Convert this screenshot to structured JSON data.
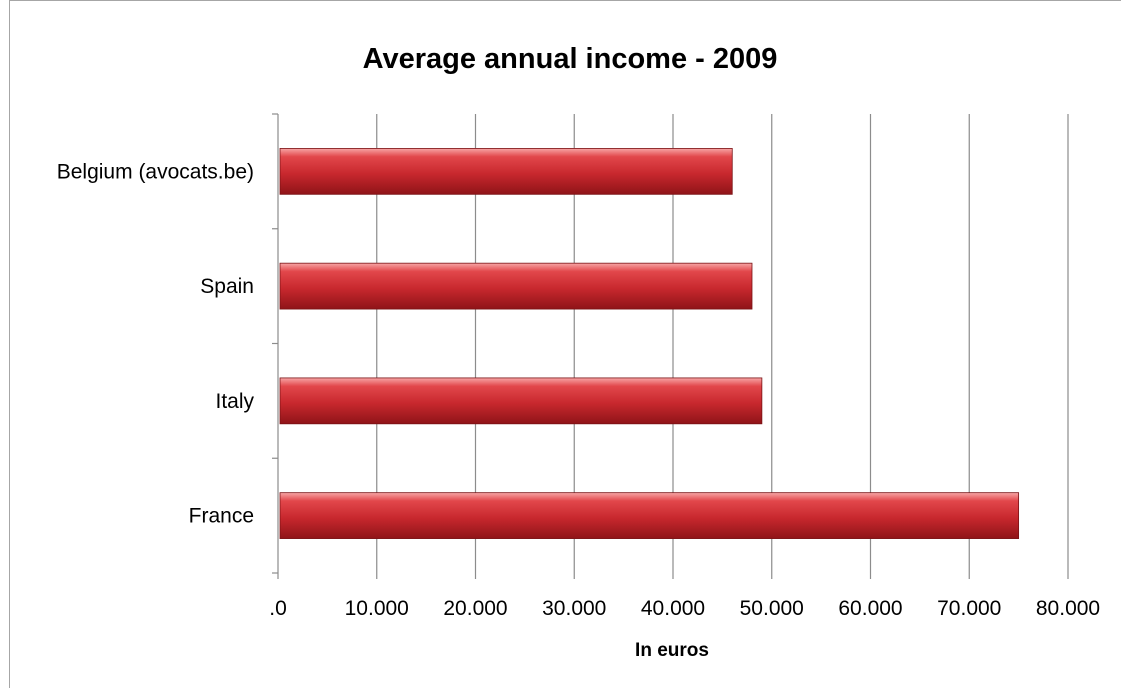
{
  "chart_data": {
    "type": "bar",
    "orientation": "horizontal",
    "title": "Average annual income - 2009",
    "xlabel": "In euros",
    "ylabel": "",
    "categories": [
      "Belgium (avocats.be)",
      "Spain",
      "Italy",
      "France"
    ],
    "values": [
      46000,
      48000,
      49000,
      75000
    ],
    "xlim": [
      0,
      80000
    ],
    "x_ticks": [
      0,
      10000,
      20000,
      30000,
      40000,
      50000,
      60000,
      70000,
      80000
    ],
    "x_tick_labels": [
      ".0",
      "10.000",
      "20.000",
      "30.000",
      "40.000",
      "50.000",
      "60.000",
      "70.000",
      "80.000"
    ],
    "grid": "vertical",
    "legend": "none",
    "bar_color": "#c0262c"
  }
}
